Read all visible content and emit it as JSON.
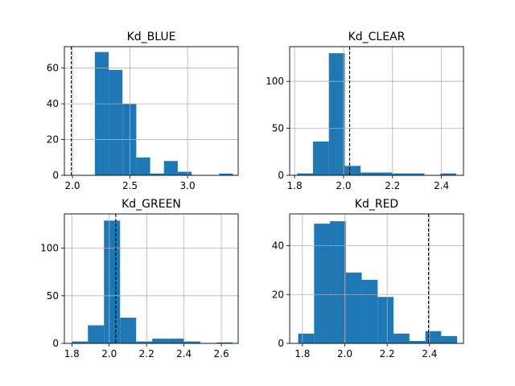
{
  "chart_data": [
    {
      "type": "bar",
      "title": "Kd_BLUE",
      "xlim": [
        1.93,
        3.44
      ],
      "ylim": [
        0,
        72
      ],
      "xticks": [
        2.0,
        2.5,
        3.0
      ],
      "xtick_labels": [
        "2.0",
        "2.5",
        "3.0"
      ],
      "yticks": [
        0,
        20,
        40,
        60
      ],
      "ytick_labels": [
        "0",
        "20",
        "40",
        "60"
      ],
      "bins": [
        2.195,
        2.315,
        2.435,
        2.555,
        2.675,
        2.795,
        2.915,
        3.035,
        3.155,
        3.275,
        3.395
      ],
      "counts": [
        69,
        59,
        40,
        10,
        1,
        8,
        2,
        0,
        0,
        1
      ],
      "reference_line_x": 1.99,
      "grid": true
    },
    {
      "type": "bar",
      "title": "Kd_CLEAR",
      "xlim": [
        1.78,
        2.49
      ],
      "ylim": [
        0,
        137
      ],
      "xticks": [
        1.8,
        2.0,
        2.2,
        2.4
      ],
      "xtick_labels": [
        "1.8",
        "2.0",
        "2.2",
        "2.4"
      ],
      "yticks": [
        0,
        50,
        100
      ],
      "ytick_labels": [
        "0",
        "50",
        "100"
      ],
      "bins": [
        1.81,
        1.875,
        1.94,
        2.005,
        2.07,
        2.135,
        2.2,
        2.265,
        2.33,
        2.395,
        2.46
      ],
      "counts": [
        2,
        36,
        130,
        10,
        3,
        3,
        2,
        2,
        0,
        2
      ],
      "reference_line_x": 2.025,
      "grid": true
    },
    {
      "type": "bar",
      "title": "Kd_GREEN",
      "xlim": [
        1.76,
        2.69
      ],
      "ylim": [
        0,
        136
      ],
      "xticks": [
        1.8,
        2.0,
        2.2,
        2.4,
        2.6
      ],
      "xtick_labels": [
        "1.8",
        "2.0",
        "2.2",
        "2.4",
        "2.6"
      ],
      "yticks": [
        0,
        50,
        100
      ],
      "ytick_labels": [
        "0",
        "50",
        "100"
      ],
      "bins": [
        1.8,
        1.886,
        1.972,
        2.058,
        2.144,
        2.23,
        2.316,
        2.402,
        2.488,
        2.574,
        2.66
      ],
      "counts": [
        2,
        19,
        129,
        27,
        2,
        5,
        5,
        2,
        0,
        1
      ],
      "reference_line_x": 2.035,
      "grid": true
    },
    {
      "type": "bar",
      "title": "Kd_RED",
      "xlim": [
        1.74,
        2.56
      ],
      "ylim": [
        0,
        53
      ],
      "xticks": [
        1.8,
        2.0,
        2.2,
        2.4
      ],
      "xtick_labels": [
        "1.8",
        "2.0",
        "2.2",
        "2.4"
      ],
      "yticks": [
        0,
        20,
        40
      ],
      "ytick_labels": [
        "0",
        "20",
        "40"
      ],
      "bins": [
        1.78,
        1.855,
        1.93,
        2.005,
        2.08,
        2.155,
        2.23,
        2.305,
        2.38,
        2.455,
        2.53
      ],
      "counts": [
        4,
        49,
        50,
        29,
        26,
        19,
        4,
        1,
        5,
        3
      ],
      "reference_line_x": 2.395,
      "grid": true
    }
  ]
}
